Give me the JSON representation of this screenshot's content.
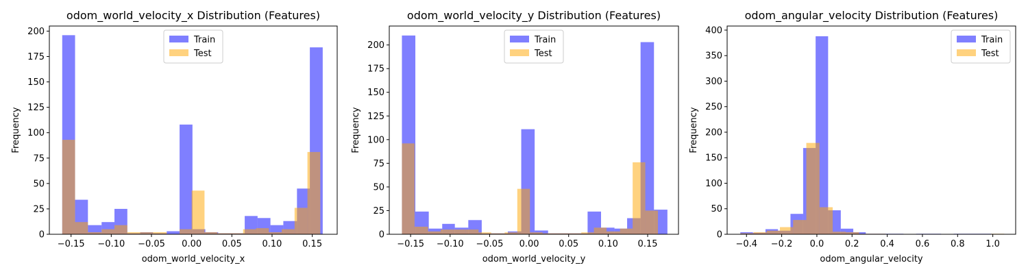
{
  "colors": {
    "train": "#0000ff",
    "test": "#ffa500",
    "alpha": 0.5,
    "axes": "#000000",
    "legend_border": "#cccccc"
  },
  "chart_data": [
    {
      "type": "bar",
      "title": "odom_world_velocity_x Distribution (Features)",
      "xlabel": "odom_world_velocity_x",
      "ylabel": "Frequency",
      "xlim": [
        -0.177,
        0.181
      ],
      "ylim": [
        0,
        205
      ],
      "xticks": [
        -0.15,
        -0.1,
        -0.05,
        0.0,
        0.05,
        0.1,
        0.15
      ],
      "xtick_labels": [
        "−0.15",
        "−0.10",
        "−0.05",
        "0.00",
        "0.05",
        "0.10",
        "0.15"
      ],
      "yticks": [
        0,
        25,
        50,
        75,
        100,
        125,
        150,
        175,
        200
      ],
      "ytick_labels": [
        "0",
        "25",
        "50",
        "75",
        "100",
        "125",
        "150",
        "175",
        "200"
      ],
      "legend_position": "upper center",
      "series": [
        {
          "name": "Train",
          "color": "#0000ff",
          "bins": [
            [
              -0.161,
              -0.145,
              196
            ],
            [
              -0.145,
              -0.129,
              34
            ],
            [
              -0.129,
              -0.112,
              9
            ],
            [
              -0.112,
              -0.096,
              12
            ],
            [
              -0.096,
              -0.08,
              25
            ],
            [
              -0.08,
              -0.064,
              1
            ],
            [
              -0.064,
              -0.048,
              2
            ],
            [
              -0.048,
              -0.031,
              1
            ],
            [
              -0.031,
              -0.015,
              3
            ],
            [
              -0.015,
              0.001,
              108
            ],
            [
              0.001,
              0.017,
              5
            ],
            [
              0.017,
              0.033,
              2
            ],
            [
              0.033,
              0.05,
              1
            ],
            [
              0.05,
              0.066,
              1
            ],
            [
              0.066,
              0.082,
              18
            ],
            [
              0.082,
              0.098,
              16
            ],
            [
              0.098,
              0.114,
              9
            ],
            [
              0.114,
              0.131,
              13
            ],
            [
              0.131,
              0.147,
              45
            ],
            [
              0.147,
              0.163,
              184
            ]
          ]
        },
        {
          "name": "Test",
          "color": "#ffa500",
          "bins": [
            [
              -0.161,
              -0.145,
              93
            ],
            [
              -0.145,
              -0.129,
              12
            ],
            [
              -0.129,
              -0.112,
              2
            ],
            [
              -0.112,
              -0.096,
              5
            ],
            [
              -0.096,
              -0.08,
              9
            ],
            [
              -0.08,
              -0.064,
              2
            ],
            [
              -0.064,
              -0.048,
              2
            ],
            [
              -0.048,
              -0.031,
              2
            ],
            [
              -0.031,
              -0.015,
              0
            ],
            [
              -0.015,
              0.0,
              5
            ],
            [
              0.0,
              0.016,
              43
            ],
            [
              0.016,
              0.032,
              2
            ],
            [
              0.032,
              0.048,
              1
            ],
            [
              0.048,
              0.064,
              1
            ],
            [
              0.064,
              0.08,
              5
            ],
            [
              0.08,
              0.096,
              6
            ],
            [
              0.096,
              0.112,
              2
            ],
            [
              0.112,
              0.128,
              5
            ],
            [
              0.128,
              0.144,
              26
            ],
            [
              0.144,
              0.16,
              81
            ]
          ]
        }
      ]
    },
    {
      "type": "bar",
      "title": "odom_world_velocity_y Distribution (Features)",
      "xlabel": "odom_world_velocity_y",
      "ylabel": "Frequency",
      "xlim": [
        -0.177,
        0.189
      ],
      "ylim": [
        0,
        220
      ],
      "xticks": [
        -0.15,
        -0.1,
        -0.05,
        0.0,
        0.05,
        0.1,
        0.15
      ],
      "xtick_labels": [
        "−0.15",
        "−0.10",
        "−0.05",
        "0.00",
        "0.05",
        "0.10",
        "0.15"
      ],
      "yticks": [
        0,
        25,
        50,
        75,
        100,
        125,
        150,
        175,
        200
      ],
      "ytick_labels": [
        "0",
        "25",
        "50",
        "75",
        "100",
        "125",
        "150",
        "175",
        "200"
      ],
      "legend_position": "upper center",
      "series": [
        {
          "name": "Train",
          "color": "#0000ff",
          "bins": [
            [
              -0.161,
              -0.144,
              210
            ],
            [
              -0.144,
              -0.127,
              24
            ],
            [
              -0.127,
              -0.11,
              6
            ],
            [
              -0.11,
              -0.094,
              11
            ],
            [
              -0.094,
              -0.077,
              7
            ],
            [
              -0.077,
              -0.06,
              15
            ],
            [
              -0.06,
              -0.043,
              1
            ],
            [
              -0.043,
              -0.027,
              1
            ],
            [
              -0.027,
              -0.01,
              3
            ],
            [
              -0.01,
              0.007,
              111
            ],
            [
              0.007,
              0.024,
              4
            ],
            [
              0.024,
              0.04,
              1
            ],
            [
              0.04,
              0.057,
              1
            ],
            [
              0.057,
              0.074,
              1
            ],
            [
              0.074,
              0.091,
              24
            ],
            [
              0.091,
              0.108,
              7
            ],
            [
              0.108,
              0.124,
              6
            ],
            [
              0.124,
              0.141,
              17
            ],
            [
              0.141,
              0.158,
              203
            ],
            [
              0.158,
              0.175,
              26
            ]
          ]
        },
        {
          "name": "Test",
          "color": "#ffa500",
          "bins": [
            [
              -0.161,
              -0.145,
              96
            ],
            [
              -0.145,
              -0.128,
              8
            ],
            [
              -0.128,
              -0.112,
              3
            ],
            [
              -0.112,
              -0.096,
              5
            ],
            [
              -0.096,
              -0.08,
              5
            ],
            [
              -0.08,
              -0.064,
              5
            ],
            [
              -0.064,
              -0.048,
              2
            ],
            [
              -0.048,
              -0.031,
              1
            ],
            [
              -0.031,
              -0.015,
              2
            ],
            [
              -0.015,
              0.001,
              48
            ],
            [
              0.001,
              0.017,
              2
            ],
            [
              0.017,
              0.034,
              1
            ],
            [
              0.034,
              0.05,
              1
            ],
            [
              0.05,
              0.066,
              1
            ],
            [
              0.066,
              0.082,
              2
            ],
            [
              0.082,
              0.098,
              7
            ],
            [
              0.098,
              0.115,
              3
            ],
            [
              0.115,
              0.131,
              6
            ],
            [
              0.131,
              0.147,
              76
            ],
            [
              0.147,
              0.163,
              25
            ]
          ]
        }
      ]
    },
    {
      "type": "bar",
      "title": "odom_angular_velocity Distribution (Features)",
      "xlabel": "odom_angular_velocity",
      "ylabel": "Frequency",
      "xlim": [
        -0.51,
        1.13
      ],
      "ylim": [
        0,
        408
      ],
      "xticks": [
        -0.4,
        -0.2,
        0.0,
        0.2,
        0.4,
        0.6,
        0.8,
        1.0
      ],
      "xtick_labels": [
        "−0.4",
        "−0.2",
        "0.0",
        "0.2",
        "0.4",
        "0.6",
        "0.8",
        "1.0"
      ],
      "yticks": [
        0,
        50,
        100,
        150,
        200,
        250,
        300,
        350,
        400
      ],
      "ytick_labels": [
        "0",
        "50",
        "100",
        "150",
        "200",
        "250",
        "300",
        "350",
        "400"
      ],
      "legend_position": "upper right",
      "series": [
        {
          "name": "Train",
          "color": "#0000ff",
          "bins": [
            [
              -0.435,
              -0.364,
              4
            ],
            [
              -0.364,
              -0.292,
              3
            ],
            [
              -0.292,
              -0.221,
              10
            ],
            [
              -0.221,
              -0.15,
              7
            ],
            [
              -0.15,
              -0.078,
              40
            ],
            [
              -0.078,
              -0.007,
              169
            ],
            [
              -0.007,
              0.064,
              388
            ],
            [
              0.064,
              0.136,
              47
            ],
            [
              0.136,
              0.207,
              11
            ],
            [
              0.207,
              0.278,
              4
            ],
            [
              0.278,
              0.35,
              1
            ],
            [
              0.35,
              0.421,
              1
            ],
            [
              0.421,
              0.492,
              1
            ],
            [
              0.492,
              0.564,
              0
            ],
            [
              0.564,
              0.635,
              1
            ],
            [
              0.635,
              0.706,
              1
            ],
            [
              0.706,
              0.778,
              0
            ],
            [
              0.778,
              0.849,
              1
            ],
            [
              0.849,
              0.92,
              1
            ],
            [
              0.92,
              0.992,
              1
            ]
          ]
        },
        {
          "name": "Test",
          "color": "#ffa500",
          "bins": [
            [
              -0.435,
              -0.36,
              2
            ],
            [
              -0.36,
              -0.285,
              4
            ],
            [
              -0.285,
              -0.21,
              7
            ],
            [
              -0.21,
              -0.135,
              14
            ],
            [
              -0.135,
              -0.06,
              28
            ],
            [
              -0.06,
              0.015,
              179
            ],
            [
              0.015,
              0.09,
              53
            ],
            [
              0.09,
              0.165,
              5
            ],
            [
              0.165,
              0.24,
              4
            ],
            [
              0.24,
              0.315,
              1
            ],
            [
              0.315,
              0.39,
              1
            ],
            [
              0.39,
              0.465,
              0
            ],
            [
              0.465,
              0.54,
              0
            ],
            [
              0.54,
              0.615,
              0
            ],
            [
              0.615,
              0.69,
              0
            ],
            [
              0.69,
              0.765,
              0
            ],
            [
              0.765,
              0.84,
              0
            ],
            [
              0.84,
              0.915,
              0
            ],
            [
              0.915,
              0.99,
              0
            ],
            [
              0.99,
              1.065,
              1
            ]
          ]
        }
      ]
    }
  ]
}
